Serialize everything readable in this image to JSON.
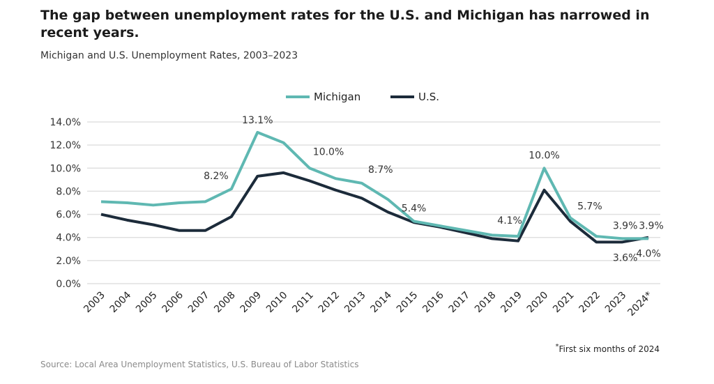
{
  "title": "The gap between unemployment rates for the U.S. and Michigan has narrowed in recent years.",
  "subtitle": "Michigan and U.S. Unemployment Rates, 2003–2023",
  "footnote": "First six months of 2024",
  "footnote_marker": "*",
  "source": "Source: Local Area Unemployment Statistics, U.S. Bureau of Labor Statistics",
  "chart_data": {
    "type": "line",
    "categories": [
      "2003",
      "2004",
      "2005",
      "2006",
      "2007",
      "2008",
      "2009",
      "2010",
      "2011",
      "2012",
      "2013",
      "2014",
      "2015",
      "2016",
      "2017",
      "2018",
      "2019",
      "2020",
      "2021",
      "2022",
      "2023",
      "2024*"
    ],
    "ylim": [
      0,
      14
    ],
    "yticks": [
      "0.0%",
      "2.0%",
      "4.0%",
      "6.0%",
      "8.0%",
      "10.0%",
      "12.0%",
      "14.0%"
    ],
    "grid": true,
    "legend": "top-center",
    "series": [
      {
        "name": "Michigan",
        "color": "#5fb8b2",
        "values": [
          7.1,
          7.0,
          6.8,
          7.0,
          7.1,
          8.2,
          13.1,
          12.2,
          10.0,
          9.1,
          8.7,
          7.3,
          5.4,
          5.0,
          4.6,
          4.2,
          4.1,
          10.0,
          5.7,
          4.1,
          3.9,
          3.9
        ],
        "labels": {
          "5": "8.2%",
          "6": "13.1%",
          "8": "10.0%",
          "10": "8.7%",
          "12": "5.4%",
          "16": "4.1%",
          "17": "10.0%",
          "18": "5.7%",
          "20": "3.9%",
          "21": "3.9%"
        }
      },
      {
        "name": "U.S.",
        "color": "#1c2b3a",
        "values": [
          6.0,
          5.5,
          5.1,
          4.6,
          4.6,
          5.8,
          9.3,
          9.6,
          8.9,
          8.1,
          7.4,
          6.2,
          5.3,
          4.9,
          4.4,
          3.9,
          3.7,
          8.1,
          5.4,
          3.6,
          3.6,
          4.0
        ],
        "labels": {
          "20": "3.6%",
          "21": "4.0%"
        }
      }
    ]
  }
}
